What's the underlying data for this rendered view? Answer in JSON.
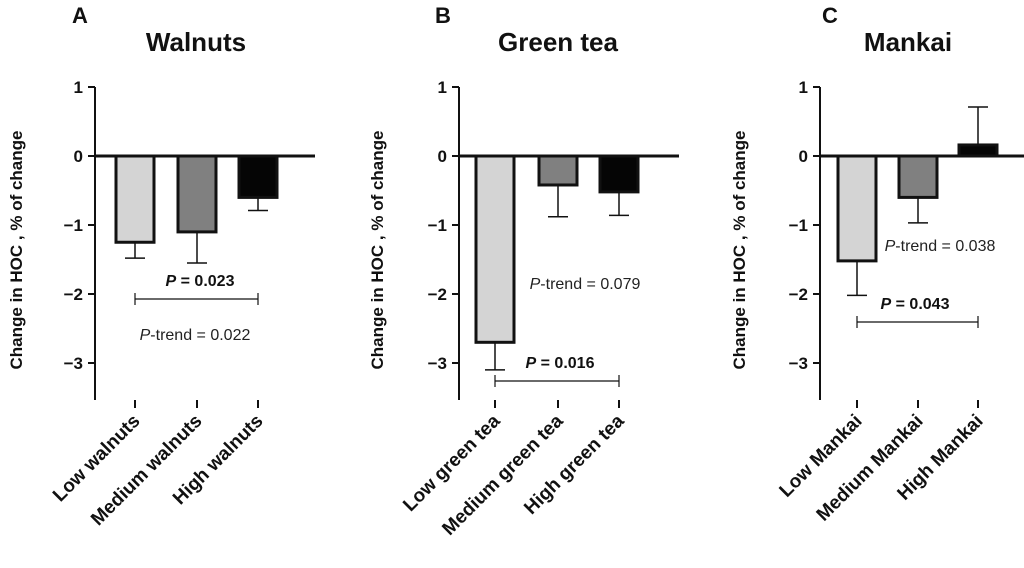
{
  "chart_data": [
    {
      "type": "bar",
      "panel_letter": "A",
      "title": "Walnuts",
      "ylabel": "Change in HOC , % of change",
      "ylim": [
        -3,
        1
      ],
      "yticks": [
        "1",
        "0",
        "−1",
        "−2",
        "−3"
      ],
      "categories": [
        "Low walnuts",
        "Medium walnuts",
        "High walnuts"
      ],
      "values": [
        -1.25,
        -1.1,
        -0.6
      ],
      "error": [
        0.23,
        0.45,
        0.19
      ],
      "colors": [
        "#d4d4d4",
        "#808080",
        "#050505"
      ],
      "bracket": {
        "from": 0,
        "to": 2,
        "label_prefix": "P",
        "label_suffix": " = 0.023"
      },
      "trend": {
        "label_prefix": "P",
        "label_suffix": "-trend = 0.022"
      }
    },
    {
      "type": "bar",
      "panel_letter": "B",
      "title": "Green tea",
      "ylabel": "Change in HOC , % of change",
      "ylim": [
        -3,
        1
      ],
      "yticks": [
        "1",
        "0",
        "−1",
        "−2",
        "−3"
      ],
      "categories": [
        "Low green tea",
        "Medium green tea",
        "High green tea"
      ],
      "values": [
        -2.7,
        -0.42,
        -0.52
      ],
      "error": [
        0.4,
        0.46,
        0.34
      ],
      "colors": [
        "#d4d4d4",
        "#808080",
        "#050505"
      ],
      "bracket": {
        "from": 0,
        "to": 2,
        "label_prefix": "P",
        "label_suffix": " = 0.016"
      },
      "trend": {
        "label_prefix": "P",
        "label_suffix": "-trend = 0.079"
      }
    },
    {
      "type": "bar",
      "panel_letter": "C",
      "title": "Mankai",
      "ylabel": "Change in HOC , % of change",
      "ylim": [
        -3,
        1
      ],
      "yticks": [
        "1",
        "0",
        "−1",
        "−2",
        "−3"
      ],
      "categories": [
        "Low Mankai",
        "Medium Mankai",
        "High Mankai"
      ],
      "values": [
        -1.52,
        -0.6,
        0.16
      ],
      "error": [
        0.5,
        0.37,
        0.55
      ],
      "colors": [
        "#d4d4d4",
        "#808080",
        "#050505"
      ],
      "bracket": {
        "from": 0,
        "to": 2,
        "label_prefix": "P",
        "label_suffix": " = 0.043"
      },
      "trend": {
        "label_prefix": "P",
        "label_suffix": "-trend = 0.038"
      }
    }
  ]
}
